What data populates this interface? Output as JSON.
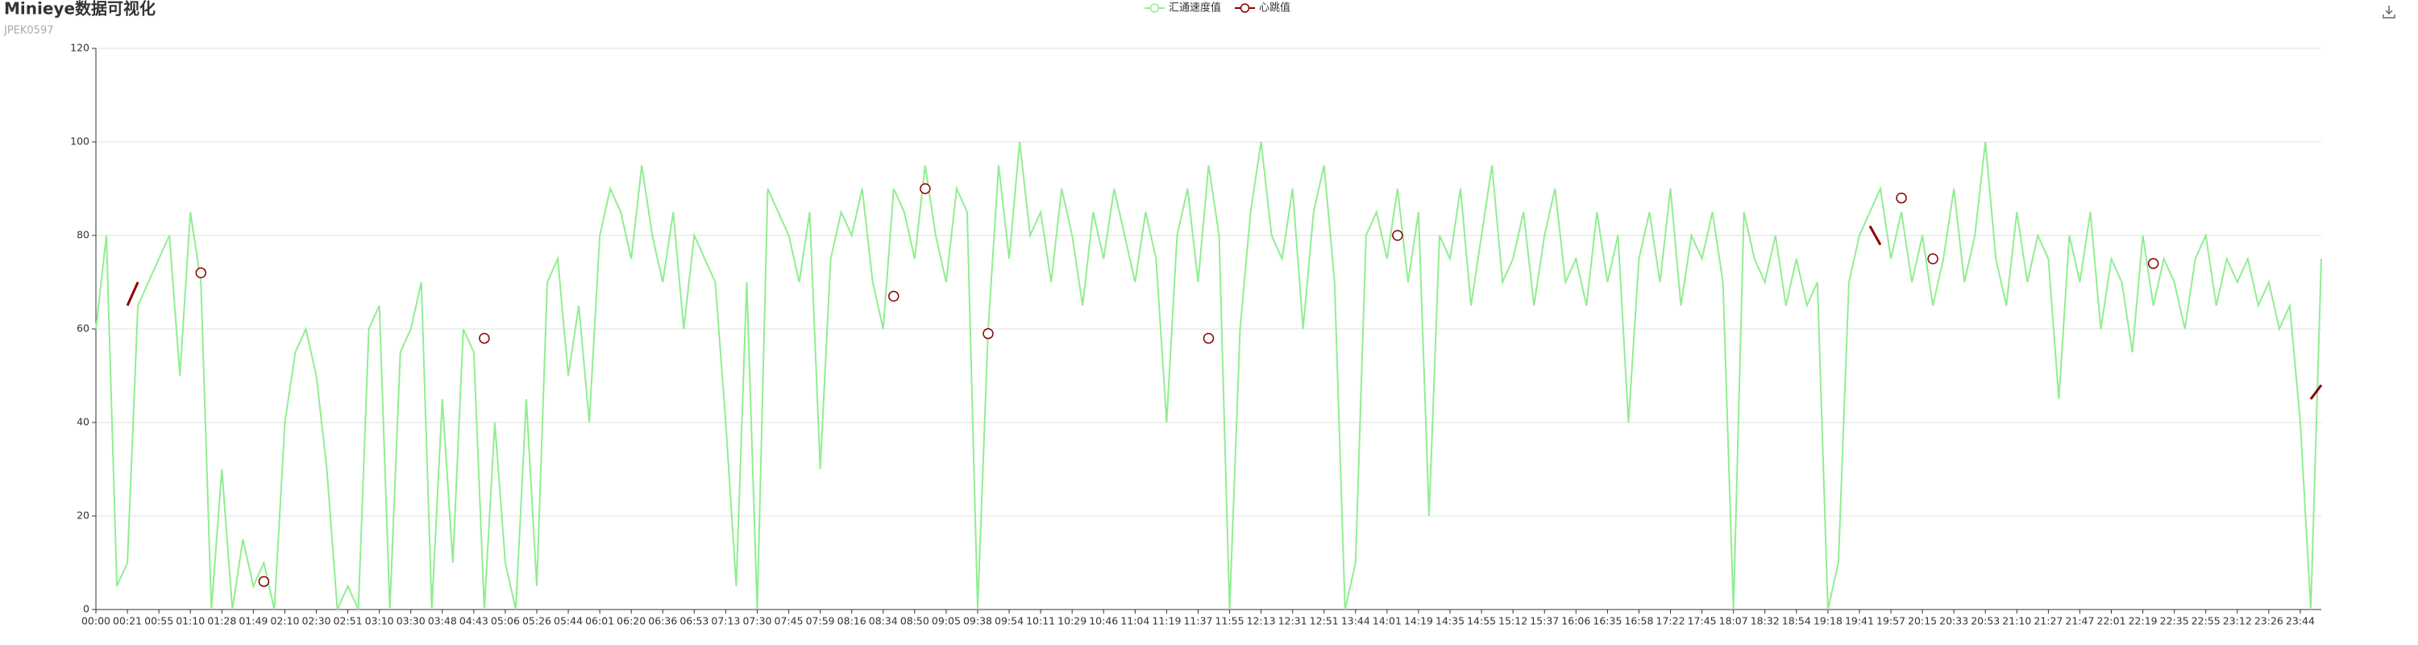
{
  "chart_data": {
    "type": "line",
    "title": "Minieye数据可视化",
    "subtitle": "JPEK0597",
    "categories": [
      "00:00",
      null,
      null,
      "00:21",
      null,
      null,
      "00:55",
      null,
      null,
      "01:10",
      null,
      null,
      "01:28",
      null,
      null,
      "01:49",
      null,
      null,
      "02:10",
      null,
      null,
      "02:30",
      null,
      null,
      "02:51",
      null,
      null,
      "03:10",
      null,
      null,
      "03:30",
      null,
      null,
      "03:48",
      null,
      null,
      "04:43",
      null,
      null,
      "05:06",
      null,
      null,
      "05:26",
      null,
      null,
      "05:44",
      null,
      null,
      "06:01",
      null,
      null,
      "06:20",
      null,
      null,
      "06:36",
      null,
      null,
      "06:53",
      null,
      null,
      "07:13",
      null,
      null,
      "07:30",
      null,
      null,
      "07:45",
      null,
      null,
      "07:59",
      null,
      null,
      "08:16",
      null,
      null,
      "08:34",
      null,
      null,
      "08:50",
      null,
      null,
      "09:05",
      null,
      null,
      "09:38",
      null,
      null,
      "09:54",
      null,
      null,
      "10:11",
      null,
      null,
      "10:29",
      null,
      null,
      "10:46",
      null,
      null,
      "11:04",
      null,
      null,
      "11:19",
      null,
      null,
      "11:37",
      null,
      null,
      "11:55",
      null,
      null,
      "12:13",
      null,
      null,
      "12:31",
      null,
      null,
      "12:51",
      null,
      null,
      "13:44",
      null,
      null,
      "14:01",
      null,
      null,
      "14:19",
      null,
      null,
      "14:35",
      null,
      null,
      "14:55",
      null,
      null,
      "15:12",
      null,
      null,
      "15:37",
      null,
      null,
      "16:06",
      null,
      null,
      "16:35",
      null,
      null,
      "16:58",
      null,
      null,
      "17:22",
      null,
      null,
      "17:45",
      null,
      null,
      "18:07",
      null,
      null,
      "18:32",
      null,
      null,
      "18:54",
      null,
      null,
      "19:18",
      null,
      null,
      "19:41",
      null,
      null,
      "19:57",
      null,
      null,
      "20:15",
      null,
      null,
      "20:33",
      null,
      null,
      "20:53",
      null,
      null,
      "21:10",
      null,
      null,
      "21:27",
      null,
      null,
      "21:47",
      null,
      null,
      "22:01",
      null,
      null,
      "22:19",
      null,
      null,
      "22:35",
      null,
      null,
      "22:55",
      null,
      null,
      "23:12",
      null,
      null,
      "23:26",
      null,
      null,
      "23:44",
      null,
      null
    ],
    "series": [
      {
        "name": "汇通速度值",
        "color": "#90ee90",
        "values": [
          60,
          80,
          5,
          10,
          65,
          70,
          75,
          80,
          50,
          85,
          70,
          0,
          30,
          0,
          15,
          5,
          10,
          0,
          40,
          55,
          60,
          50,
          30,
          0,
          5,
          0,
          60,
          65,
          0,
          55,
          60,
          70,
          0,
          45,
          10,
          60,
          55,
          0,
          40,
          10,
          0,
          45,
          5,
          70,
          75,
          50,
          65,
          40,
          80,
          90,
          85,
          75,
          95,
          80,
          70,
          85,
          60,
          80,
          75,
          70,
          40,
          5,
          70,
          0,
          90,
          85,
          80,
          70,
          85,
          30,
          75,
          85,
          80,
          90,
          70,
          60,
          90,
          85,
          75,
          95,
          80,
          70,
          90,
          85,
          0,
          60,
          95,
          75,
          100,
          80,
          85,
          70,
          90,
          80,
          65,
          85,
          75,
          90,
          80,
          70,
          85,
          75,
          40,
          80,
          90,
          70,
          95,
          80,
          0,
          60,
          85,
          100,
          80,
          75,
          90,
          60,
          85,
          95,
          70,
          0,
          10,
          80,
          85,
          75,
          90,
          70,
          85,
          20,
          80,
          75,
          90,
          65,
          80,
          95,
          70,
          75,
          85,
          65,
          80,
          90,
          70,
          75,
          65,
          85,
          70,
          80,
          40,
          75,
          85,
          70,
          90,
          65,
          80,
          75,
          85,
          70,
          0,
          85,
          75,
          70,
          80,
          65,
          75,
          65,
          70,
          0,
          10,
          70,
          80,
          85,
          90,
          75,
          85,
          70,
          80,
          65,
          75,
          90,
          70,
          80,
          100,
          75,
          65,
          85,
          70,
          80,
          75,
          45,
          80,
          70,
          85,
          60,
          75,
          70,
          55,
          80,
          65,
          75,
          70,
          60,
          75,
          80,
          65,
          75,
          70,
          75,
          65,
          70,
          60,
          65,
          40,
          0,
          75
        ]
      },
      {
        "name": "心跳值",
        "color": "#8b0000",
        "values": [
          null,
          null,
          null,
          65,
          70,
          null,
          null,
          null,
          null,
          null,
          72,
          null,
          null,
          null,
          null,
          null,
          6,
          null,
          null,
          null,
          null,
          null,
          null,
          null,
          null,
          null,
          null,
          null,
          null,
          null,
          null,
          null,
          null,
          null,
          null,
          null,
          null,
          58,
          null,
          null,
          null,
          null,
          null,
          null,
          null,
          null,
          null,
          null,
          null,
          null,
          null,
          null,
          null,
          null,
          null,
          null,
          null,
          null,
          null,
          null,
          null,
          null,
          null,
          null,
          null,
          null,
          null,
          null,
          null,
          null,
          null,
          null,
          null,
          null,
          null,
          null,
          67,
          null,
          null,
          90,
          null,
          null,
          null,
          null,
          null,
          59,
          null,
          null,
          null,
          null,
          null,
          null,
          null,
          null,
          null,
          null,
          null,
          null,
          null,
          null,
          null,
          null,
          null,
          null,
          null,
          null,
          58,
          null,
          null,
          null,
          null,
          null,
          null,
          null,
          null,
          null,
          null,
          null,
          null,
          null,
          null,
          null,
          null,
          null,
          80,
          null,
          null,
          null,
          null,
          null,
          null,
          null,
          null,
          null,
          null,
          null,
          null,
          null,
          null,
          null,
          null,
          null,
          null,
          null,
          null,
          null,
          null,
          null,
          null,
          null,
          null,
          null,
          null,
          null,
          null,
          null,
          null,
          null,
          null,
          null,
          null,
          null,
          null,
          null,
          null,
          null,
          null,
          null,
          null,
          82,
          78,
          null,
          88,
          null,
          null,
          75,
          null,
          null,
          null,
          null,
          null,
          null,
          null,
          null,
          null,
          null,
          null,
          null,
          null,
          null,
          null,
          null,
          null,
          null,
          null,
          null,
          74,
          null,
          null,
          null,
          null,
          null,
          null,
          null,
          null,
          null,
          null,
          null,
          null,
          null,
          null,
          45,
          48
        ]
      }
    ],
    "ylim": [
      0,
      120
    ],
    "yticks": [
      0,
      20,
      40,
      60,
      80,
      100,
      120
    ],
    "grid": true,
    "legend": "top"
  }
}
